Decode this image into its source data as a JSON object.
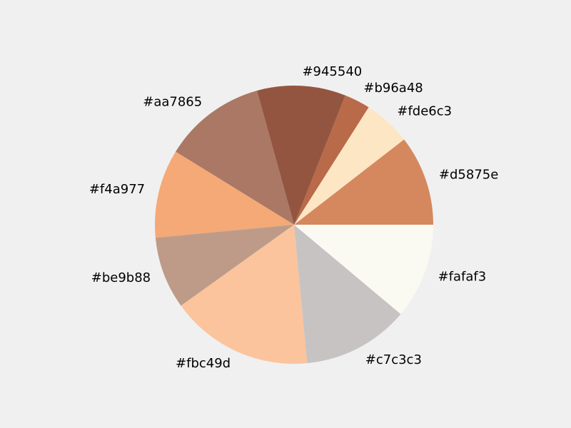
{
  "chart_data": {
    "type": "pie",
    "title": "",
    "labels": [
      "#d5875e",
      "#fde6c3",
      "#b96a48",
      "#945540",
      "#aa7865",
      "#f4a977",
      "#be9b88",
      "#fbc49d",
      "#c7c3c3",
      "#fafaf3"
    ],
    "colors": [
      "#d5875e",
      "#fde6c3",
      "#b96a48",
      "#945540",
      "#aa7865",
      "#f4a977",
      "#be9b88",
      "#fbc49d",
      "#c7c3c3",
      "#fafaf3"
    ],
    "values": [
      10.5,
      5.5,
      3.0,
      10.3,
      11.9,
      10.3,
      8.4,
      16.6,
      12.4,
      11.1
    ],
    "start_angle_deg": 0,
    "direction": "counterclockwise",
    "legend": "none"
  }
}
